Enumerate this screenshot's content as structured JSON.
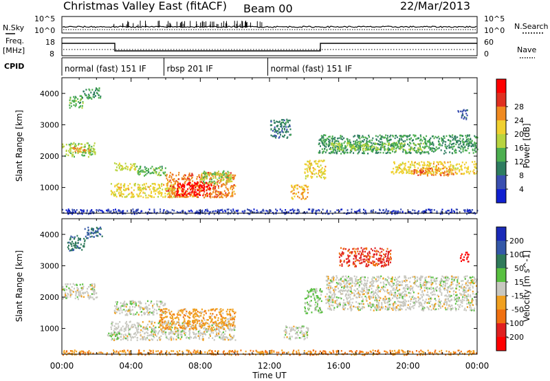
{
  "header": {
    "station": "Christmas Valley East (fitACF)",
    "beam": "Beam 00",
    "date": "22/Mar/2013"
  },
  "noise_panel": {
    "left_label": "N.Sky",
    "left_tick_top": "10^5",
    "left_tick_bottom": "10^0",
    "right_tick_top": "10^5",
    "right_tick_bottom": "10^0",
    "right_label": "N.Search"
  },
  "freq_panel": {
    "left_label_1": "Freq.",
    "left_label_2": "[MHz]",
    "left_tick_top": "18",
    "left_tick_bottom": "8",
    "right_tick_top": "60",
    "right_tick_bottom": "0",
    "right_label": "Nave"
  },
  "cpid_panel": {
    "label": "CPID",
    "segments": [
      {
        "start_h": 0,
        "end_h": 5.9,
        "text": "normal (fast) 151 IF"
      },
      {
        "start_h": 5.9,
        "end_h": 11.9,
        "text": "rbsp 201 IF"
      },
      {
        "start_h": 11.9,
        "end_h": 24,
        "text": "normal (fast) 151 IF"
      }
    ]
  },
  "time_axis": {
    "ticks": [
      "00:00",
      "04:00",
      "08:00",
      "12:00",
      "16:00",
      "20:00",
      "00:00"
    ],
    "label": "Time UT"
  },
  "power_panel": {
    "ylabel": "Slant Range [km]",
    "yticks": [
      "1000",
      "2000",
      "3000",
      "4000"
    ],
    "colorbar_label": "Power [dB]",
    "colorbar_ticks": [
      "4",
      "8",
      "12",
      "16",
      "20",
      "24",
      "28"
    ],
    "colors": [
      "#1020d0",
      "#3a4fb0",
      "#2e7d60",
      "#4caf50",
      "#b8d440",
      "#f0d030",
      "#f08a20",
      "#e03020",
      "#ff0000"
    ]
  },
  "velocity_panel": {
    "ylabel": "Slant Range [km]",
    "yticks": [
      "1000",
      "2000",
      "3000",
      "4000"
    ],
    "colorbar_label": "Velocity [m s^-1]",
    "colorbar_ticks": [
      "200",
      "100",
      "50",
      "15",
      "-15",
      "-50",
      "-100",
      "-200"
    ],
    "colors": [
      "#1a2ab8",
      "#3458a8",
      "#2f7a5a",
      "#58c040",
      "#c8c8c0",
      "#f0a020",
      "#f07010",
      "#e02020",
      "#ff0000"
    ]
  },
  "chart_data": [
    {
      "type": "heatmap",
      "title": "Power",
      "x_unit": "hours UT",
      "y_unit": "km",
      "xlim": [
        0,
        24
      ],
      "ylim": [
        180,
        4500
      ],
      "colorbar_range": [
        0,
        30
      ],
      "regions": [
        {
          "x": [
            0.0,
            1.9
          ],
          "y": [
            2000,
            2450
          ],
          "value": 14
        },
        {
          "x": [
            0.6,
            1.6
          ],
          "y": [
            2150,
            2300
          ],
          "value": 22
        },
        {
          "x": [
            0.4,
            1.2
          ],
          "y": [
            3550,
            3950
          ],
          "value": 12
        },
        {
          "x": [
            1.2,
            2.2
          ],
          "y": [
            3850,
            4200
          ],
          "value": 10
        },
        {
          "x": [
            3.0,
            4.3
          ],
          "y": [
            1550,
            1800
          ],
          "value": 16
        },
        {
          "x": [
            4.3,
            6.0
          ],
          "y": [
            1400,
            1700
          ],
          "value": 12
        },
        {
          "x": [
            2.8,
            7.0
          ],
          "y": [
            700,
            1150
          ],
          "value": 18
        },
        {
          "x": [
            6.0,
            10.0
          ],
          "y": [
            700,
            1500
          ],
          "value": 22
        },
        {
          "x": [
            6.6,
            8.6
          ],
          "y": [
            750,
            1200
          ],
          "value": 30
        },
        {
          "x": [
            8.0,
            9.8
          ],
          "y": [
            1150,
            1550
          ],
          "value": 14
        },
        {
          "x": [
            12.0,
            13.2
          ],
          "y": [
            2600,
            3200
          ],
          "value": 8
        },
        {
          "x": [
            13.2,
            14.2
          ],
          "y": [
            650,
            1100
          ],
          "value": 20
        },
        {
          "x": [
            14.0,
            15.2
          ],
          "y": [
            1300,
            1900
          ],
          "value": 18
        },
        {
          "x": [
            14.8,
            24.0
          ],
          "y": [
            2100,
            2700
          ],
          "value": 10
        },
        {
          "x": [
            15.5,
            21.0
          ],
          "y": [
            2200,
            2450
          ],
          "value": 14
        },
        {
          "x": [
            19.0,
            24.0
          ],
          "y": [
            1450,
            1850
          ],
          "value": 18
        },
        {
          "x": [
            20.2,
            22.6
          ],
          "y": [
            1400,
            1650
          ],
          "value": 22
        },
        {
          "x": [
            22.8,
            23.4
          ],
          "y": [
            3200,
            3500
          ],
          "value": 6
        },
        {
          "x": [
            0.0,
            24.0
          ],
          "y": [
            180,
            330
          ],
          "value": 4
        }
      ]
    },
    {
      "type": "heatmap",
      "title": "Velocity",
      "x_unit": "hours UT",
      "y_unit": "km",
      "xlim": [
        0,
        24
      ],
      "ylim": [
        180,
        4500
      ],
      "colorbar_range": [
        -250,
        250
      ],
      "regions": [
        {
          "x": [
            0.0,
            2.0
          ],
          "y": [
            1950,
            2450
          ],
          "value": 0
        },
        {
          "x": [
            0.3,
            1.3
          ],
          "y": [
            3500,
            4000
          ],
          "value": 120
        },
        {
          "x": [
            1.3,
            2.3
          ],
          "y": [
            3900,
            4250
          ],
          "value": 150
        },
        {
          "x": [
            3.0,
            6.0
          ],
          "y": [
            1450,
            1900
          ],
          "value": 0
        },
        {
          "x": [
            2.8,
            10.0
          ],
          "y": [
            650,
            1250
          ],
          "value": 0
        },
        {
          "x": [
            5.6,
            10.0
          ],
          "y": [
            1000,
            1650
          ],
          "value": -60
        },
        {
          "x": [
            2.6,
            3.4
          ],
          "y": [
            700,
            900
          ],
          "value": 40
        },
        {
          "x": [
            12.8,
            14.2
          ],
          "y": [
            650,
            1100
          ],
          "value": 0
        },
        {
          "x": [
            14.0,
            15.0
          ],
          "y": [
            1500,
            2300
          ],
          "value": 40
        },
        {
          "x": [
            15.2,
            24.0
          ],
          "y": [
            1600,
            2700
          ],
          "value": 0
        },
        {
          "x": [
            16.0,
            19.0
          ],
          "y": [
            3000,
            3600
          ],
          "value": -150
        },
        {
          "x": [
            23.0,
            23.5
          ],
          "y": [
            3150,
            3450
          ],
          "value": -220
        },
        {
          "x": [
            0.0,
            24.0
          ],
          "y": [
            180,
            330
          ],
          "value": -80
        }
      ]
    }
  ]
}
